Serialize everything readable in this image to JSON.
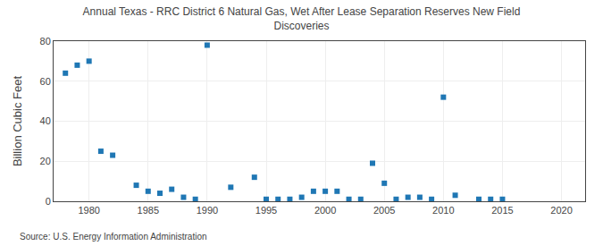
{
  "chart_data": {
    "type": "scatter",
    "title": "Annual Texas - RRC District 6 Natural Gas, Wet After Lease Separation Reserves New Field\nDiscoveries",
    "ylabel": "Billion Cubic Feet",
    "source": "Source: U.S. Energy Information Administration",
    "marker": "square",
    "grid": true,
    "xlim": [
      1977,
      2022
    ],
    "ylim": [
      0,
      80
    ],
    "xticks": [
      1980,
      1985,
      1990,
      1995,
      2000,
      2005,
      2010,
      2015,
      2020
    ],
    "yticks": [
      0,
      20,
      40,
      60,
      80
    ],
    "x": [
      1978,
      1979,
      1980,
      1981,
      1982,
      1984,
      1985,
      1986,
      1987,
      1988,
      1989,
      1990,
      1992,
      1994,
      1995,
      1996,
      1997,
      1998,
      1999,
      2000,
      2001,
      2002,
      2003,
      2004,
      2005,
      2006,
      2007,
      2008,
      2009,
      2010,
      2011,
      2013,
      2014,
      2015
    ],
    "values": [
      64,
      68,
      70,
      25,
      23,
      8,
      5,
      4,
      6,
      2,
      1,
      78,
      7,
      12,
      1,
      1,
      1,
      2,
      5,
      5,
      5,
      1,
      1,
      19,
      9,
      1,
      2,
      2,
      1,
      52,
      3,
      1,
      1,
      1
    ]
  }
}
